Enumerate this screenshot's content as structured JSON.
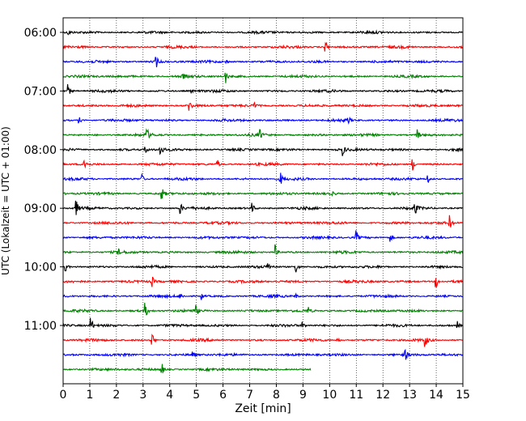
{
  "chart_data": {
    "type": "line",
    "title": "",
    "xlabel": "Zeit  [min]",
    "ylabel": "UTC (Lokalzeit = UTC + 01:00)",
    "xlim": [
      0,
      15
    ],
    "x_ticks": [
      "0",
      "1",
      "2",
      "3",
      "4",
      "5",
      "6",
      "7",
      "8",
      "9",
      "10",
      "11",
      "12",
      "13",
      "14",
      "15"
    ],
    "y_ticks": [
      {
        "row": 0,
        "label": "06:00"
      },
      {
        "row": 4,
        "label": "07:00"
      },
      {
        "row": 8,
        "label": "08:00"
      },
      {
        "row": 12,
        "label": "09:00"
      },
      {
        "row": 16,
        "label": "10:00"
      },
      {
        "row": 20,
        "label": "11:00"
      }
    ],
    "grid_x": true,
    "color_cycle": [
      "#000000",
      "#ff0000",
      "#0000ff",
      "#008000"
    ],
    "traces": [
      {
        "start": "06:00",
        "end_min": 15,
        "events": [
          [
            0.2,
            3
          ]
        ]
      },
      {
        "start": "06:15",
        "end_min": 15,
        "events": [
          [
            9.85,
            10
          ]
        ]
      },
      {
        "start": "06:30",
        "end_min": 15,
        "events": [
          [
            3.5,
            7
          ],
          [
            6.1,
            3
          ]
        ]
      },
      {
        "start": "06:45",
        "end_min": 15,
        "events": [
          [
            6.1,
            8
          ],
          [
            4.5,
            3
          ]
        ]
      },
      {
        "start": "07:00",
        "end_min": 15,
        "events": [
          [
            0.2,
            8
          ],
          [
            4.8,
            3
          ]
        ]
      },
      {
        "start": "07:15",
        "end_min": 15,
        "events": [
          [
            4.75,
            8
          ],
          [
            7.2,
            3
          ]
        ]
      },
      {
        "start": "07:30",
        "end_min": 15,
        "events": [
          [
            0.6,
            4
          ],
          [
            10.7,
            4
          ]
        ]
      },
      {
        "start": "07:45",
        "end_min": 15,
        "events": [
          [
            3.15,
            9
          ],
          [
            7.4,
            6
          ],
          [
            13.3,
            7
          ]
        ]
      },
      {
        "start": "08:00",
        "end_min": 15,
        "events": [
          [
            3.65,
            9
          ],
          [
            3.1,
            5
          ],
          [
            10.5,
            7
          ]
        ]
      },
      {
        "start": "08:15",
        "end_min": 15,
        "events": [
          [
            0.8,
            10
          ],
          [
            5.8,
            5
          ],
          [
            13.1,
            10
          ]
        ]
      },
      {
        "start": "08:30",
        "end_min": 15,
        "events": [
          [
            2.95,
            6
          ],
          [
            8.15,
            9
          ],
          [
            13.7,
            4
          ]
        ]
      },
      {
        "start": "08:45",
        "end_min": 15,
        "events": [
          [
            3.7,
            9
          ],
          [
            10.1,
            4
          ]
        ]
      },
      {
        "start": "09:00",
        "end_min": 15,
        "events": [
          [
            0.5,
            9
          ],
          [
            4.4,
            7
          ],
          [
            7.1,
            6
          ],
          [
            13.2,
            9
          ]
        ]
      },
      {
        "start": "09:15",
        "end_min": 15,
        "events": [
          [
            14.5,
            9
          ],
          [
            5.5,
            3
          ]
        ]
      },
      {
        "start": "09:30",
        "end_min": 15,
        "events": [
          [
            11.0,
            9
          ],
          [
            12.3,
            5
          ]
        ]
      },
      {
        "start": "09:45",
        "end_min": 15,
        "events": [
          [
            7.95,
            10
          ],
          [
            2.1,
            3
          ]
        ]
      },
      {
        "start": "10:00",
        "end_min": 15,
        "events": [
          [
            0.1,
            6
          ],
          [
            8.75,
            9
          ],
          [
            7.7,
            5
          ]
        ]
      },
      {
        "start": "10:15",
        "end_min": 15,
        "events": [
          [
            3.35,
            6
          ],
          [
            14.0,
            9
          ]
        ]
      },
      {
        "start": "10:30",
        "end_min": 15,
        "events": [
          [
            4.4,
            4
          ],
          [
            5.2,
            4
          ],
          [
            8.7,
            5
          ]
        ]
      },
      {
        "start": "10:45",
        "end_min": 15,
        "events": [
          [
            3.1,
            9
          ],
          [
            5.0,
            5
          ],
          [
            9.2,
            4
          ]
        ]
      },
      {
        "start": "11:00",
        "end_min": 15,
        "events": [
          [
            1.05,
            10
          ],
          [
            9.0,
            4
          ],
          [
            14.8,
            5
          ]
        ]
      },
      {
        "start": "11:15",
        "end_min": 15,
        "events": [
          [
            3.35,
            9
          ],
          [
            13.6,
            7
          ],
          [
            10.3,
            3
          ]
        ]
      },
      {
        "start": "11:30",
        "end_min": 15,
        "events": [
          [
            4.85,
            7
          ],
          [
            12.85,
            6
          ]
        ]
      },
      {
        "start": "11:45",
        "end_min": 9.3,
        "events": [
          [
            3.7,
            9
          ]
        ]
      }
    ]
  }
}
